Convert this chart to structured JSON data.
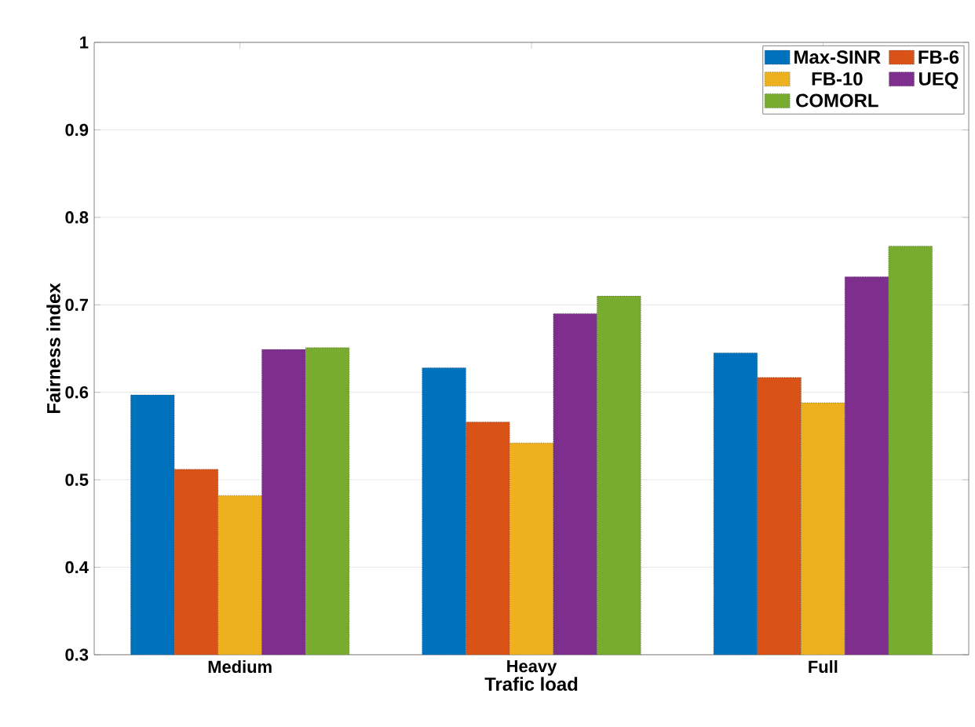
{
  "chart_data": {
    "type": "bar",
    "xlabel": "Trafic load",
    "ylabel": "Fairness index",
    "categories": [
      "Medium",
      "Heavy",
      "Full"
    ],
    "series": [
      {
        "name": "Max-SINR",
        "color": "#0072bd",
        "values": [
          0.597,
          0.628,
          0.645
        ]
      },
      {
        "name": "FB-6",
        "color": "#d95319",
        "values": [
          0.512,
          0.566,
          0.617
        ]
      },
      {
        "name": "FB-10",
        "color": "#edb120",
        "values": [
          0.482,
          0.542,
          0.588
        ]
      },
      {
        "name": "UEQ",
        "color": "#7e2f8e",
        "values": [
          0.649,
          0.69,
          0.732
        ]
      },
      {
        "name": "COMORL",
        "color": "#77ac30",
        "values": [
          0.651,
          0.71,
          0.767
        ]
      }
    ],
    "ylim": [
      0.3,
      1
    ],
    "yticks": [
      0.3,
      0.4,
      0.5,
      0.6,
      0.7,
      0.8,
      0.9,
      1
    ],
    "grid": "y",
    "legend": "top right"
  }
}
